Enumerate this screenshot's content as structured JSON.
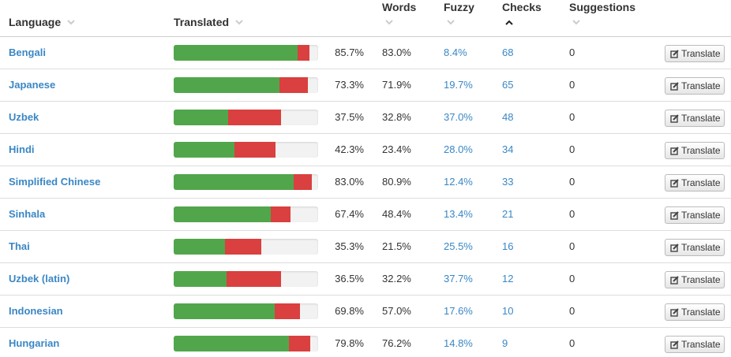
{
  "table": {
    "header": [
      "Language",
      "Translated",
      "Words",
      "Fuzzy",
      "Checks",
      "Suggestions"
    ],
    "rows": [
      {
        "language": "Bengali",
        "translated": {
          "value": 85.7,
          "label": "85.7%"
        },
        "words": "83.0%",
        "fuzzy": {
          "value": 8.4,
          "label": "8.4%"
        },
        "checks": 68,
        "suggestions": 0,
        "action": "Translate"
      },
      {
        "language": "Japanese",
        "translated": {
          "value": 73.3,
          "label": "73.3%"
        },
        "words": "71.9%",
        "fuzzy": {
          "value": 19.7,
          "label": "19.7%"
        },
        "checks": 65,
        "suggestions": 0,
        "action": "Translate"
      },
      {
        "language": "Uzbek",
        "translated": {
          "value": 37.5,
          "label": "37.5%"
        },
        "words": "32.8%",
        "fuzzy": {
          "value": 37.0,
          "label": "37.0%"
        },
        "checks": 48,
        "suggestions": 0,
        "action": "Translate"
      },
      {
        "language": "Hindi",
        "translated": {
          "value": 42.3,
          "label": "42.3%"
        },
        "words": "23.4%",
        "fuzzy": {
          "value": 28.0,
          "label": "28.0%"
        },
        "checks": 34,
        "suggestions": 0,
        "action": "Translate"
      },
      {
        "language": "Simplified Chinese",
        "translated": {
          "value": 83.0,
          "label": "83.0%"
        },
        "words": "80.9%",
        "fuzzy": {
          "value": 12.4,
          "label": "12.4%"
        },
        "checks": 33,
        "suggestions": 0,
        "action": "Translate"
      },
      {
        "language": "Sinhala",
        "translated": {
          "value": 67.4,
          "label": "67.4%"
        },
        "words": "48.4%",
        "fuzzy": {
          "value": 13.4,
          "label": "13.4%"
        },
        "checks": 21,
        "suggestions": 0,
        "action": "Translate"
      },
      {
        "language": "Thai",
        "translated": {
          "value": 35.3,
          "label": "35.3%"
        },
        "words": "21.5%",
        "fuzzy": {
          "value": 25.5,
          "label": "25.5%"
        },
        "checks": 16,
        "suggestions": 0,
        "action": "Translate"
      },
      {
        "language": "Uzbek (latin)",
        "translated": {
          "value": 36.5,
          "label": "36.5%"
        },
        "words": "32.2%",
        "fuzzy": {
          "value": 37.7,
          "label": "37.7%"
        },
        "checks": 12,
        "suggestions": 0,
        "action": "Translate"
      },
      {
        "language": "Indonesian",
        "translated": {
          "value": 69.8,
          "label": "69.8%"
        },
        "words": "57.0%",
        "fuzzy": {
          "value": 17.6,
          "label": "17.6%"
        },
        "checks": 10,
        "suggestions": 0,
        "action": "Translate"
      },
      {
        "language": "Hungarian",
        "translated": {
          "value": 79.8,
          "label": "79.8%"
        },
        "words": "76.2%",
        "fuzzy": {
          "value": 14.8,
          "label": "14.8%"
        },
        "checks": 9,
        "suggestions": 0,
        "action": "Translate"
      }
    ]
  }
}
